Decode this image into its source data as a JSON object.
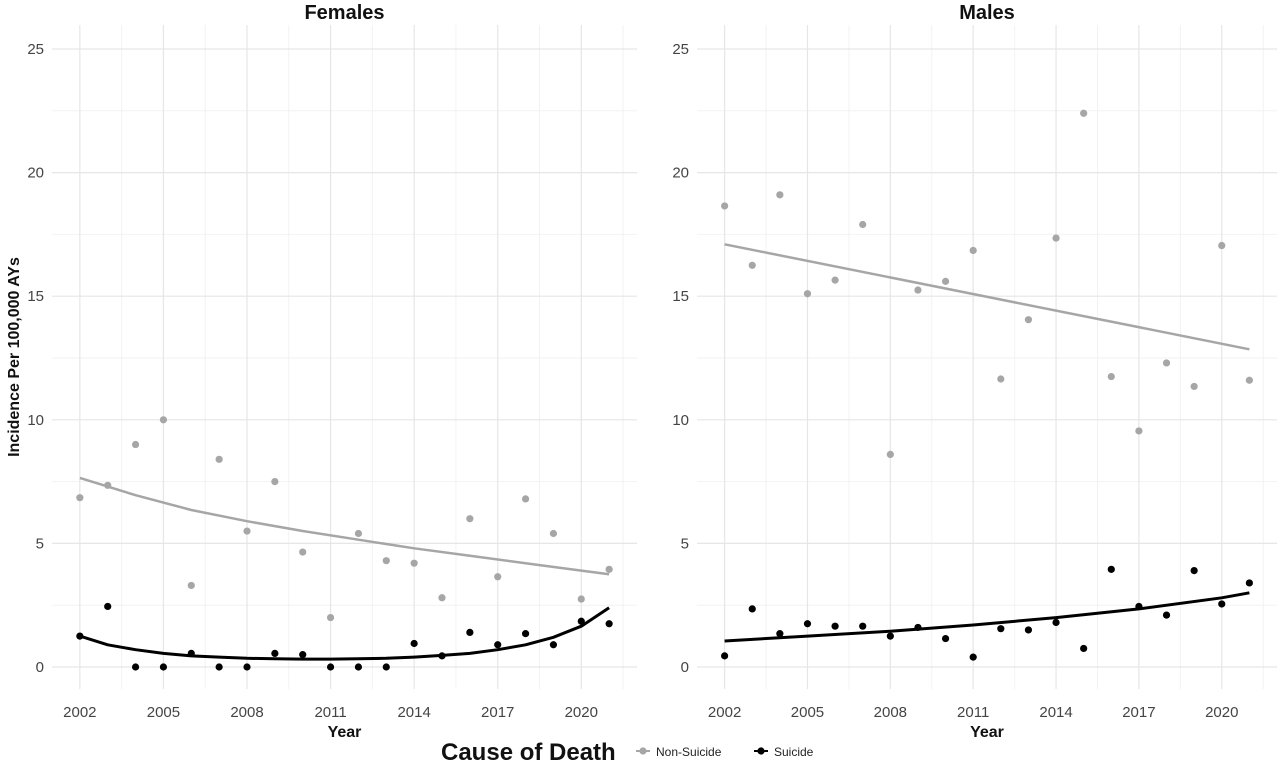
{
  "chart_data": {
    "type": "scatter",
    "ylabel": "Incidence Per 100,000 AYs",
    "xlabel": "Year",
    "ylim": [
      0,
      25
    ],
    "xlim": [
      2002,
      2021
    ],
    "yticks": [
      0,
      5,
      10,
      15,
      20,
      25
    ],
    "xticks": [
      2002,
      2005,
      2008,
      2011,
      2014,
      2017,
      2020
    ],
    "grid": true,
    "legend": {
      "title": "Cause of Death",
      "position": "bottom",
      "entries": [
        {
          "name": "Non-Suicide",
          "color": "#a6a6a6"
        },
        {
          "name": "Suicide",
          "color": "#000000"
        }
      ]
    },
    "panels": [
      {
        "title": "Females",
        "series": [
          {
            "name": "Non-Suicide",
            "color": "#a6a6a6",
            "points": [
              [
                2002,
                6.85
              ],
              [
                2003,
                7.35
              ],
              [
                2004,
                9.0
              ],
              [
                2005,
                10.0
              ],
              [
                2006,
                3.3
              ],
              [
                2007,
                8.4
              ],
              [
                2008,
                5.5
              ],
              [
                2009,
                7.5
              ],
              [
                2010,
                4.65
              ],
              [
                2011,
                2.0
              ],
              [
                2012,
                5.4
              ],
              [
                2013,
                4.3
              ],
              [
                2014,
                4.2
              ],
              [
                2015,
                2.8
              ],
              [
                2016,
                6.0
              ],
              [
                2017,
                3.65
              ],
              [
                2018,
                6.8
              ],
              [
                2019,
                5.4
              ],
              [
                2020,
                2.75
              ],
              [
                2021,
                3.95
              ]
            ],
            "trend": [
              [
                2002,
                7.65
              ],
              [
                2004,
                6.95
              ],
              [
                2006,
                6.35
              ],
              [
                2008,
                5.9
              ],
              [
                2010,
                5.5
              ],
              [
                2012,
                5.15
              ],
              [
                2014,
                4.8
              ],
              [
                2016,
                4.5
              ],
              [
                2018,
                4.2
              ],
              [
                2020,
                3.9
              ],
              [
                2021,
                3.75
              ]
            ]
          },
          {
            "name": "Suicide",
            "color": "#000000",
            "points": [
              [
                2002,
                1.25
              ],
              [
                2003,
                2.45
              ],
              [
                2004,
                0.0
              ],
              [
                2005,
                0.0
              ],
              [
                2006,
                0.55
              ],
              [
                2007,
                0.0
              ],
              [
                2008,
                0.0
              ],
              [
                2009,
                0.55
              ],
              [
                2010,
                0.5
              ],
              [
                2011,
                0.0
              ],
              [
                2012,
                0.0
              ],
              [
                2013,
                0.0
              ],
              [
                2014,
                0.95
              ],
              [
                2015,
                0.45
              ],
              [
                2016,
                1.4
              ],
              [
                2017,
                0.9
              ],
              [
                2018,
                1.35
              ],
              [
                2019,
                0.9
              ],
              [
                2020,
                1.85
              ],
              [
                2021,
                1.75
              ]
            ],
            "trend": [
              [
                2002,
                1.25
              ],
              [
                2003,
                0.9
              ],
              [
                2004,
                0.7
              ],
              [
                2005,
                0.55
              ],
              [
                2006,
                0.45
              ],
              [
                2007,
                0.4
              ],
              [
                2008,
                0.35
              ],
              [
                2009,
                0.33
              ],
              [
                2010,
                0.32
              ],
              [
                2011,
                0.32
              ],
              [
                2012,
                0.33
              ],
              [
                2013,
                0.35
              ],
              [
                2014,
                0.4
              ],
              [
                2015,
                0.47
              ],
              [
                2016,
                0.55
              ],
              [
                2017,
                0.7
              ],
              [
                2018,
                0.9
              ],
              [
                2019,
                1.2
              ],
              [
                2020,
                1.65
              ],
              [
                2021,
                2.4
              ]
            ]
          }
        ]
      },
      {
        "title": "Males",
        "series": [
          {
            "name": "Non-Suicide",
            "color": "#a6a6a6",
            "points": [
              [
                2002,
                18.65
              ],
              [
                2003,
                16.25
              ],
              [
                2004,
                19.1
              ],
              [
                2005,
                15.1
              ],
              [
                2006,
                15.65
              ],
              [
                2007,
                17.9
              ],
              [
                2008,
                8.6
              ],
              [
                2009,
                15.25
              ],
              [
                2010,
                15.6
              ],
              [
                2011,
                16.85
              ],
              [
                2012,
                11.65
              ],
              [
                2013,
                14.05
              ],
              [
                2014,
                17.35
              ],
              [
                2015,
                22.4
              ],
              [
                2016,
                11.75
              ],
              [
                2017,
                9.55
              ],
              [
                2018,
                12.3
              ],
              [
                2019,
                11.35
              ],
              [
                2020,
                17.05
              ],
              [
                2021,
                11.6
              ]
            ],
            "trend": [
              [
                2002,
                17.1
              ],
              [
                2021,
                12.85
              ]
            ]
          },
          {
            "name": "Suicide",
            "color": "#000000",
            "points": [
              [
                2002,
                0.45
              ],
              [
                2003,
                2.35
              ],
              [
                2004,
                1.35
              ],
              [
                2005,
                1.75
              ],
              [
                2006,
                1.65
              ],
              [
                2007,
                1.65
              ],
              [
                2008,
                1.25
              ],
              [
                2009,
                1.6
              ],
              [
                2010,
                1.15
              ],
              [
                2011,
                0.4
              ],
              [
                2012,
                1.55
              ],
              [
                2013,
                1.5
              ],
              [
                2014,
                1.8
              ],
              [
                2015,
                0.75
              ],
              [
                2016,
                3.95
              ],
              [
                2017,
                2.45
              ],
              [
                2018,
                2.1
              ],
              [
                2019,
                3.9
              ],
              [
                2020,
                2.55
              ],
              [
                2021,
                3.4
              ]
            ],
            "trend": [
              [
                2002,
                1.05
              ],
              [
                2005,
                1.25
              ],
              [
                2008,
                1.45
              ],
              [
                2011,
                1.7
              ],
              [
                2014,
                2.0
              ],
              [
                2017,
                2.35
              ],
              [
                2020,
                2.8
              ],
              [
                2021,
                3.0
              ]
            ]
          }
        ]
      }
    ]
  }
}
